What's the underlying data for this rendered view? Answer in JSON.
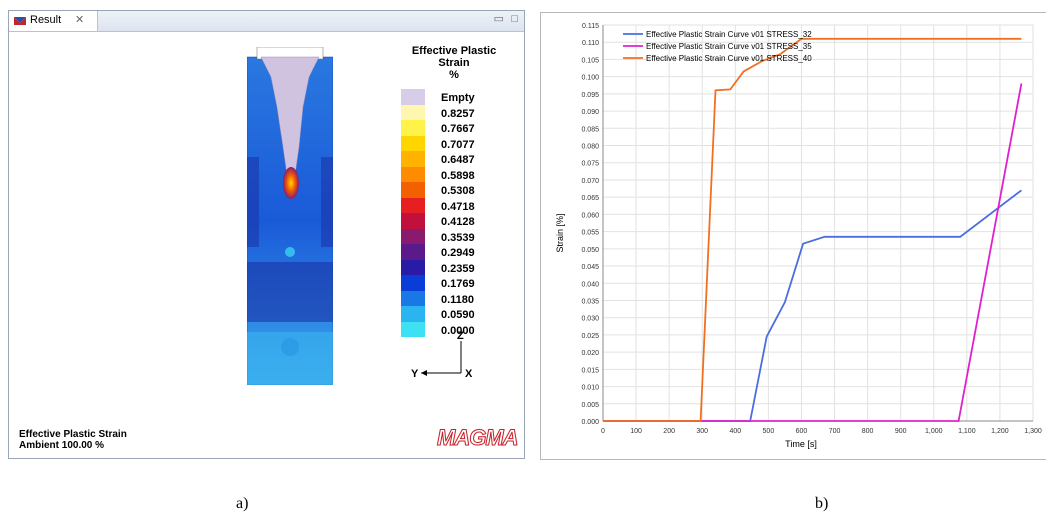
{
  "result_window": {
    "tab_label": "Result",
    "tab_close": "✕",
    "minimize": "▭",
    "maximize": "□",
    "legend": {
      "title_line1": "Effective Plastic",
      "title_line2": "Strain",
      "title_line3": "%",
      "entries": [
        {
          "label": "Empty",
          "color": "#d8cde8"
        },
        {
          "label": "0.8257",
          "color": "#fff7b0"
        },
        {
          "label": "0.7667",
          "color": "#fff34a"
        },
        {
          "label": "0.7077",
          "color": "#ffd500"
        },
        {
          "label": "0.6487",
          "color": "#ffb200"
        },
        {
          "label": "0.5898",
          "color": "#ff8c00"
        },
        {
          "label": "0.5308",
          "color": "#f26000"
        },
        {
          "label": "0.4718",
          "color": "#e62020"
        },
        {
          "label": "0.4128",
          "color": "#c2103c"
        },
        {
          "label": "0.3539",
          "color": "#8a1a6e"
        },
        {
          "label": "0.2949",
          "color": "#5a1a8a"
        },
        {
          "label": "0.2359",
          "color": "#2a1aa8"
        },
        {
          "label": "0.1769",
          "color": "#0a3cd8"
        },
        {
          "label": "0.1180",
          "color": "#1a78e6"
        },
        {
          "label": "0.0590",
          "color": "#2ab4f0"
        },
        {
          "label": "0.0000",
          "color": "#3ee0f4"
        }
      ]
    },
    "triad": {
      "z": "Z",
      "y": "Y",
      "x": "X"
    },
    "footer_line1": "Effective Plastic Strain",
    "footer_line2": "Ambient 100.00 %",
    "logo": "MAGMA"
  },
  "chart_data": {
    "type": "line",
    "xlabel": "Time [s]",
    "ylabel": "Strain [%]",
    "xlim": [
      0,
      1300
    ],
    "ylim": [
      0,
      0.115
    ],
    "x_ticks": [
      "0",
      "100",
      "200",
      "300",
      "400",
      "500",
      "600",
      "700",
      "800",
      "900",
      "1,000",
      "1,100",
      "1,200",
      "1,300"
    ],
    "y_ticks": [
      "0.000",
      "0.005",
      "0.010",
      "0.015",
      "0.020",
      "0.025",
      "0.030",
      "0.035",
      "0.040",
      "0.045",
      "0.050",
      "0.055",
      "0.060",
      "0.065",
      "0.070",
      "0.075",
      "0.080",
      "0.085",
      "0.090",
      "0.095",
      "0.100",
      "0.105",
      "0.110",
      "0.115"
    ],
    "grid": true,
    "legend_position": "top-left",
    "series": [
      {
        "name": "Effective Plastic Strain Curve  v01 STRESS_32",
        "color": "#4a6ee0",
        "x": [
          0,
          445,
          495,
          550,
          605,
          670,
          1080,
          1265
        ],
        "y": [
          0,
          0,
          0.0245,
          0.0345,
          0.0515,
          0.0535,
          0.0535,
          0.067
        ]
      },
      {
        "name": "Effective Plastic Strain Curve  v01 STRESS_35",
        "color": "#e020d0",
        "x": [
          0,
          1075,
          1265
        ],
        "y": [
          0,
          0,
          0.098
        ]
      },
      {
        "name": "Effective Plastic Strain Curve  v01 STRESS_40",
        "color": "#f07020",
        "x": [
          0,
          295,
          340,
          385,
          425,
          480,
          535,
          600,
          1265
        ],
        "y": [
          0,
          0,
          0.096,
          0.0963,
          0.1015,
          0.1045,
          0.1065,
          0.111,
          0.111
        ]
      }
    ]
  },
  "captions": {
    "a": "a)",
    "b": "b)"
  }
}
